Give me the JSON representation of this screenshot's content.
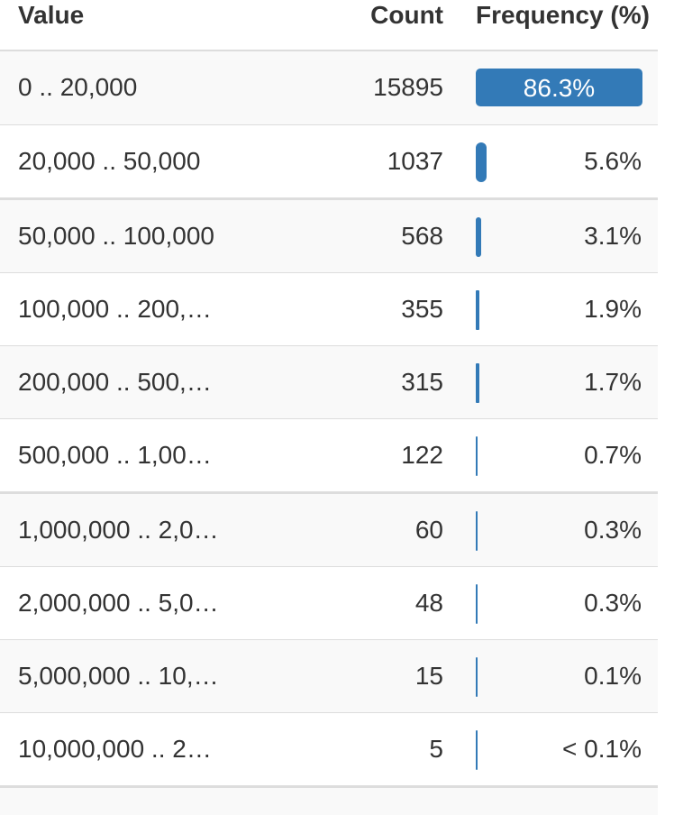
{
  "headers": {
    "value": "Value",
    "count": "Count",
    "frequency": "Frequency (%)"
  },
  "accent_color": "#337ab7",
  "rows": [
    {
      "value": "0 .. 20,000",
      "count": "15895",
      "pct": "86.3%",
      "fraction": 0.863
    },
    {
      "value": "20,000 .. 50,000",
      "count": "1037",
      "pct": "5.6%",
      "fraction": 0.056
    },
    {
      "value": "50,000 .. 100,000",
      "count": "568",
      "pct": "3.1%",
      "fraction": 0.031
    },
    {
      "value": "100,000 .. 200,…",
      "count": "355",
      "pct": "1.9%",
      "fraction": 0.019
    },
    {
      "value": "200,000 .. 500,…",
      "count": "315",
      "pct": "1.7%",
      "fraction": 0.017
    },
    {
      "value": "500,000 .. 1,00…",
      "count": "122",
      "pct": "0.7%",
      "fraction": 0.007
    },
    {
      "value": "1,000,000 .. 2,0…",
      "count": "60",
      "pct": "0.3%",
      "fraction": 0.003
    },
    {
      "value": "2,000,000 .. 5,0…",
      "count": "48",
      "pct": "0.3%",
      "fraction": 0.003
    },
    {
      "value": "5,000,000 .. 10,…",
      "count": "15",
      "pct": "0.1%",
      "fraction": 0.001
    },
    {
      "value": "10,000,000 .. 2…",
      "count": "5",
      "pct": "< 0.1%",
      "fraction": 0.0003
    }
  ]
}
